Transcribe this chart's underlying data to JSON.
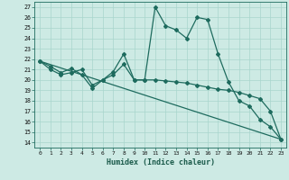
{
  "title": "",
  "xlabel": "Humidex (Indice chaleur)",
  "bg_color": "#cdeae4",
  "grid_color": "#a8d5cc",
  "line_color": "#1e6b5e",
  "xlim": [
    -0.5,
    23.5
  ],
  "ylim": [
    13.5,
    27.5
  ],
  "yticks": [
    14,
    15,
    16,
    17,
    18,
    19,
    20,
    21,
    22,
    23,
    24,
    25,
    26,
    27
  ],
  "xticks": [
    0,
    1,
    2,
    3,
    4,
    5,
    6,
    7,
    8,
    9,
    10,
    11,
    12,
    13,
    14,
    15,
    16,
    17,
    18,
    19,
    20,
    21,
    22,
    23
  ],
  "line1_x": [
    0,
    1,
    2,
    3,
    4,
    5,
    6,
    7,
    8,
    9,
    10,
    11,
    12,
    13,
    14,
    15,
    16,
    17,
    18,
    19,
    20,
    21,
    22,
    23
  ],
  "line1_y": [
    21.8,
    21.3,
    20.7,
    21.1,
    20.5,
    19.2,
    20.0,
    20.5,
    21.5,
    20.0,
    20.0,
    27.0,
    25.2,
    24.8,
    24.0,
    26.0,
    25.8,
    22.5,
    19.8,
    18.0,
    17.5,
    16.2,
    15.5,
    14.3
  ],
  "line2_x": [
    0,
    1,
    2,
    3,
    4,
    5,
    6,
    7,
    8,
    9,
    10,
    11,
    12,
    13,
    14,
    15,
    16,
    17,
    18,
    19,
    20,
    21,
    22,
    23
  ],
  "line2_y": [
    21.8,
    21.0,
    20.5,
    20.7,
    21.0,
    19.5,
    20.0,
    20.8,
    22.5,
    20.0,
    20.0,
    20.0,
    19.9,
    19.8,
    19.7,
    19.5,
    19.3,
    19.1,
    19.0,
    18.8,
    18.5,
    18.2,
    17.0,
    14.3
  ],
  "line3_x": [
    0,
    23
  ],
  "line3_y": [
    21.8,
    14.3
  ]
}
